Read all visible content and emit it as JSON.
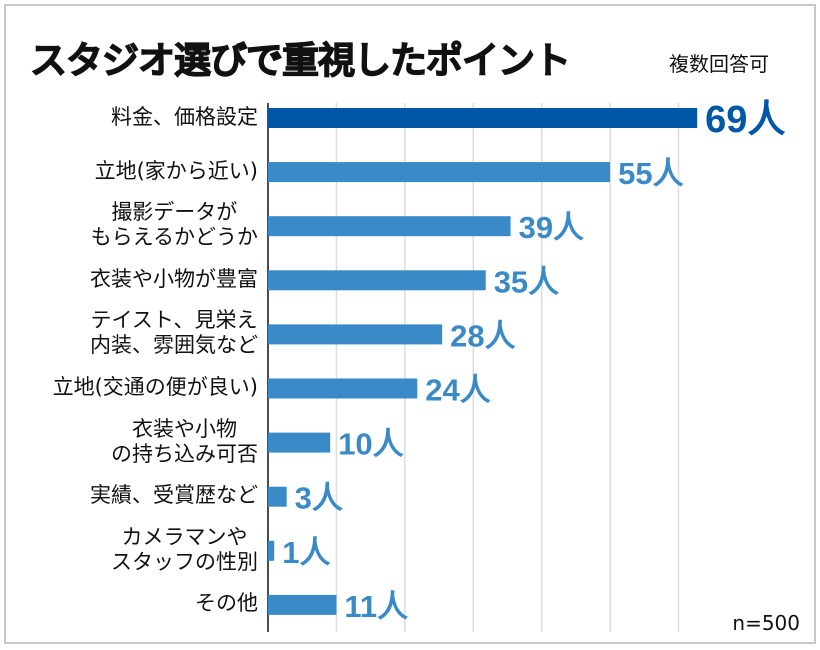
{
  "chart_data": {
    "type": "bar",
    "orientation": "horizontal",
    "title": "スタジオ選びで重視したポイント",
    "subtitle": "複数回答可",
    "categories": [
      [
        "料金、価格設定"
      ],
      [
        "立地(家から近い)"
      ],
      [
        "撮影データが",
        "もらえるかどうか"
      ],
      [
        "衣装や小物が豊富"
      ],
      [
        "テイスト、見栄え",
        "内装、雰囲気など"
      ],
      [
        "立地(交通の便が良い)"
      ],
      [
        "衣装や小物",
        "の持ち込み可否"
      ],
      [
        "実績、受賞歴など"
      ],
      [
        "カメラマンや",
        "スタッフの性別"
      ],
      [
        "その他"
      ]
    ],
    "values": [
      69,
      55,
      39,
      35,
      28,
      24,
      10,
      3,
      1,
      11
    ],
    "value_labels": [
      "69人",
      "55人",
      "39人",
      "35人",
      "28人",
      "24人",
      "10人",
      "3人",
      "1人",
      "11人"
    ],
    "unit": "人",
    "xlim": [
      0,
      75
    ],
    "grid": true,
    "note": "n=500",
    "colors": {
      "highlight": "#0057a8",
      "bar": "#3a8ac7",
      "grid": "#dddddd",
      "axis": "#111111"
    }
  }
}
